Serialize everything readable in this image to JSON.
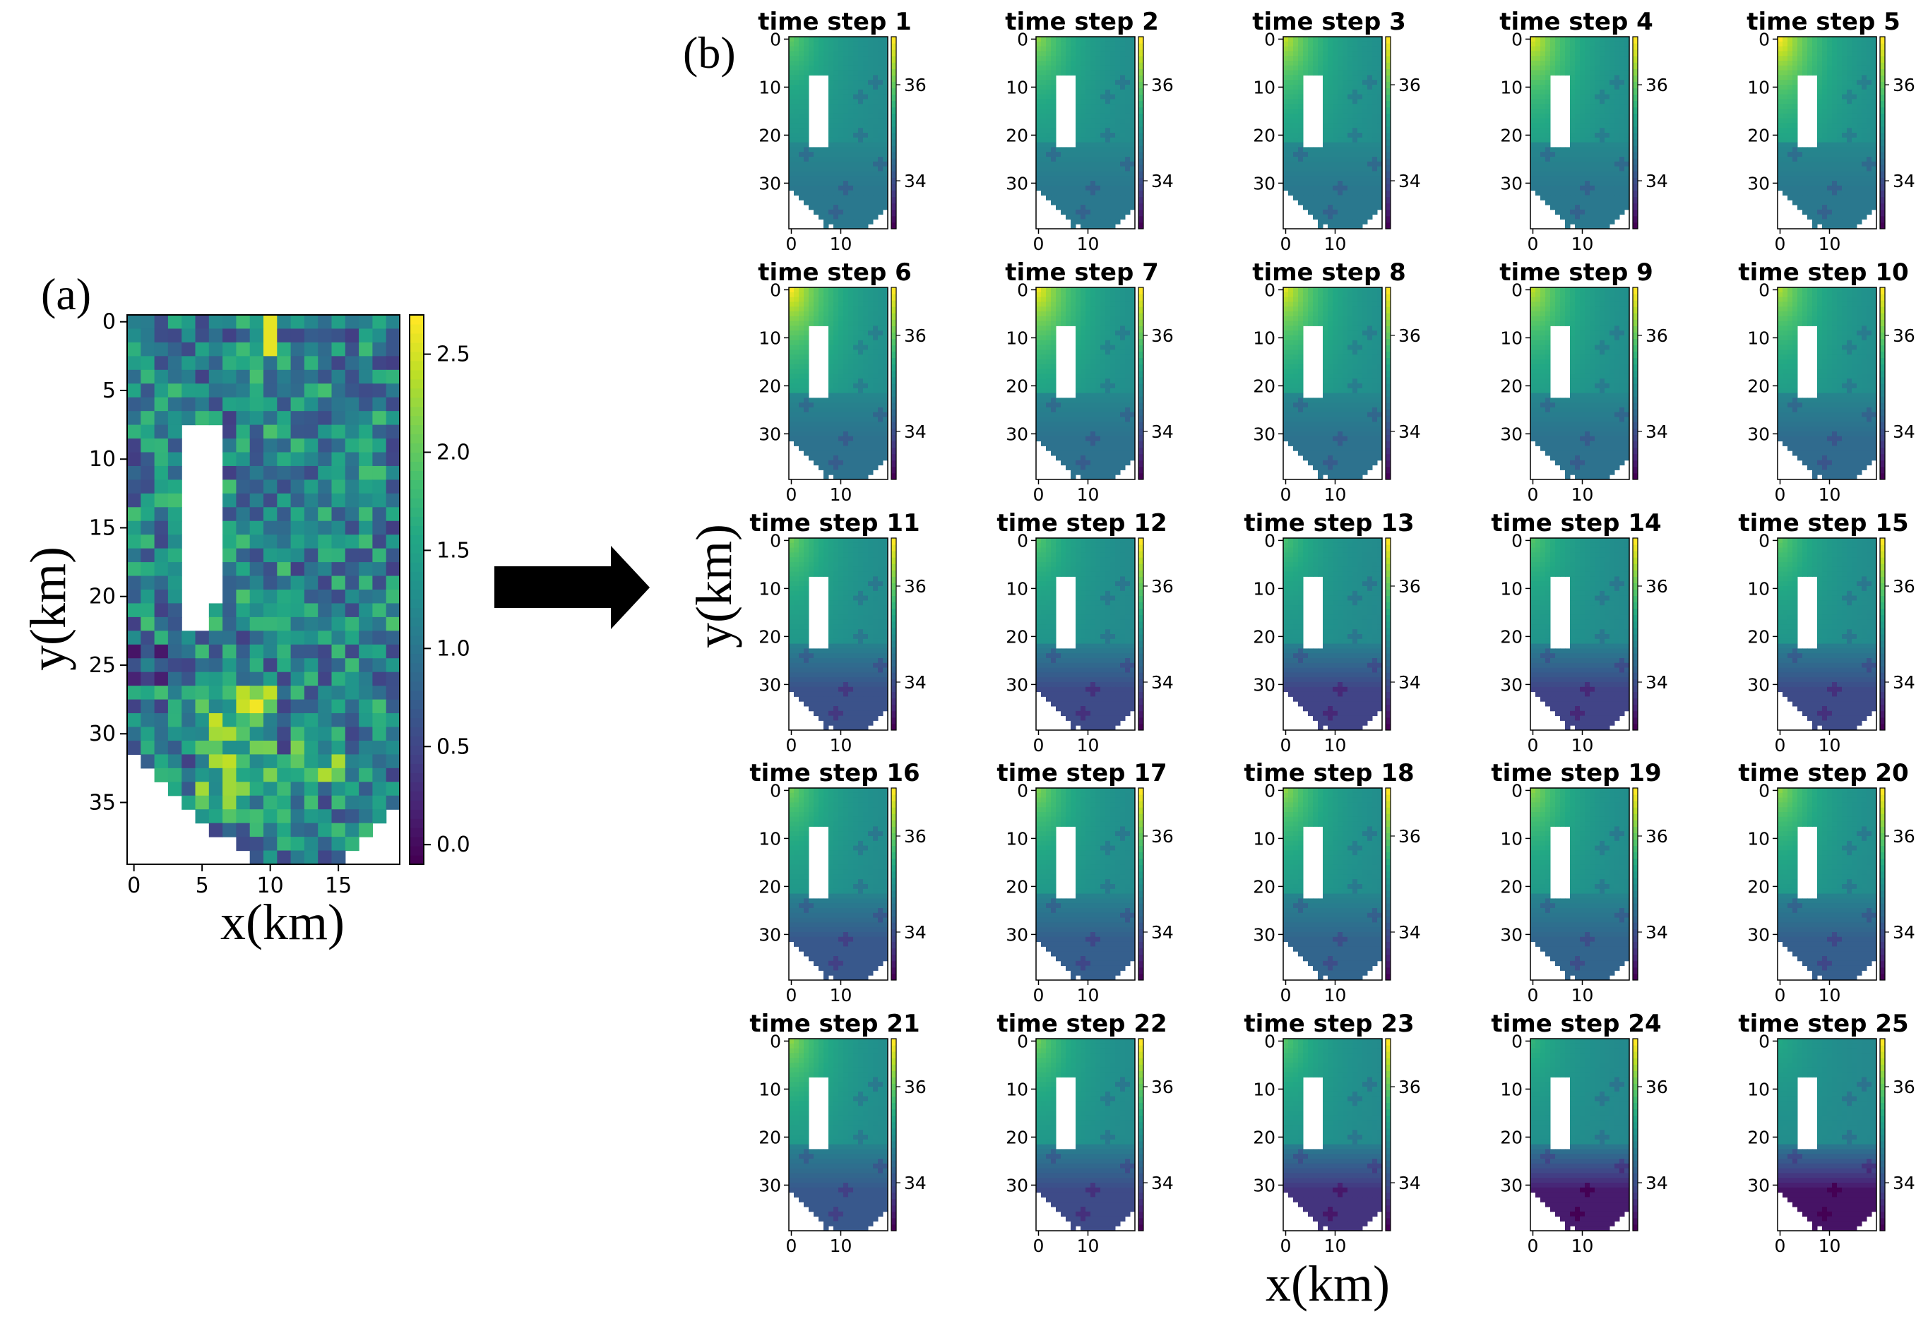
{
  "figure": {
    "panel_a_label": "(a)",
    "panel_b_label": "(b)",
    "panel_a_xlabel": "x(km)",
    "panel_a_ylabel": "y(km)",
    "panel_b_xlabel": "x(km)",
    "panel_b_ylabel": "y(km)"
  },
  "colors": {
    "colormap": "viridis",
    "arrow": "#000000",
    "background": "#ffffff"
  },
  "chart_data": [
    {
      "type": "heatmap",
      "title": "",
      "xlabel": "x(km)",
      "ylabel": "y(km)",
      "grid_size": [
        20,
        40
      ],
      "xlim": [
        0,
        19
      ],
      "ylim": [
        39,
        0
      ],
      "xticks": [
        0,
        5,
        10,
        15
      ],
      "xtick_labels": [
        "0",
        "5",
        "10",
        "15"
      ],
      "yticks": [
        0,
        5,
        10,
        15,
        20,
        25,
        30,
        35
      ],
      "ytick_labels": [
        "0",
        "5",
        "10",
        "15",
        "20",
        "25",
        "30",
        "35"
      ],
      "colorbar": {
        "range": [
          -0.1,
          2.7
        ],
        "ticks": [
          0.0,
          0.5,
          1.0,
          1.5,
          2.0,
          2.5
        ],
        "tick_labels": [
          "0.0",
          "0.5",
          "1.0",
          "1.5",
          "2.0",
          "2.5"
        ]
      },
      "field": "random grid values roughly 0.3-2.2 with a brighter band (~2.0-2.6) around y=27-36, x=5-10",
      "masked_regions": [
        "white rectangular hole x=4-7, y=8-22",
        "white lower-left corner below the staircase boundary from y=32",
        "white lower-right corner below the staircase boundary from y=36"
      ]
    },
    {
      "type": "heatmap",
      "title": "",
      "xlabel": "x(km)",
      "ylabel": "y(km)",
      "grid_size": [
        20,
        40
      ],
      "layout": "5x5 small multiples",
      "subplot_titles": [
        "time step 1",
        "time step 2",
        "time step 3",
        "time step 4",
        "time step 5",
        "time step 6",
        "time step 7",
        "time step 8",
        "time step 9",
        "time step 10",
        "time step 11",
        "time step 12",
        "time step 13",
        "time step 14",
        "time step 15",
        "time step 16",
        "time step 17",
        "time step 18",
        "time step 19",
        "time step 20",
        "time step 21",
        "time step 22",
        "time step 23",
        "time step 24",
        "time step 25"
      ],
      "xticks": [
        0,
        10
      ],
      "xtick_labels": [
        "0",
        "10"
      ],
      "yticks": [
        0,
        10,
        20,
        30
      ],
      "ytick_labels": [
        "0",
        "10",
        "20",
        "30"
      ],
      "colorbar": {
        "range": [
          33.0,
          37.0
        ],
        "ticks": [
          34,
          36
        ],
        "tick_labels": [
          "34",
          "36"
        ]
      },
      "upper_left_peak": [
        36.0,
        36.3,
        36.6,
        36.8,
        37.0,
        37.0,
        36.9,
        36.8,
        36.6,
        36.5,
        36.1,
        35.9,
        35.8,
        35.9,
        36.0,
        36.1,
        36.2,
        36.3,
        36.3,
        36.3,
        36.3,
        36.1,
        35.9,
        35.6,
        35.4
      ],
      "lower_region_level": [
        34.6,
        34.6,
        34.6,
        34.6,
        34.6,
        34.5,
        34.5,
        34.5,
        34.5,
        34.4,
        34.0,
        33.9,
        33.8,
        33.8,
        33.9,
        34.1,
        34.2,
        34.3,
        34.3,
        34.2,
        34.1,
        33.9,
        33.6,
        33.3,
        33.2
      ],
      "masked_regions": [
        "white rectangular hole x=4-7, y=8-22",
        "white lower-left and lower-right corners below the staircase boundary"
      ]
    }
  ]
}
